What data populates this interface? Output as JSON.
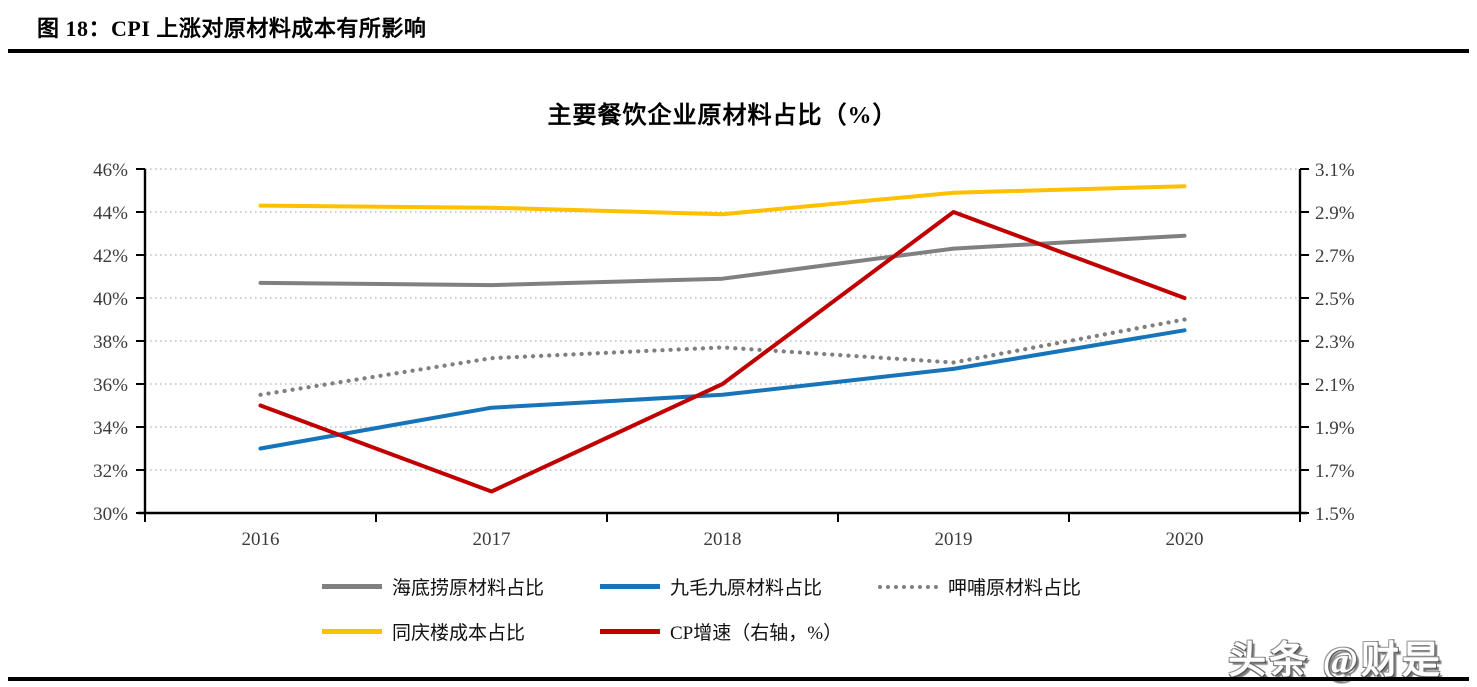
{
  "figure_header": {
    "title": "图 18：CPI 上涨对原材料成本有所影响"
  },
  "watermark": {
    "text": "头条 @财是"
  },
  "chart_data": {
    "type": "line",
    "title": "主要餐饮企业原材料占比（%）",
    "categories": [
      "2016",
      "2017",
      "2018",
      "2019",
      "2020"
    ],
    "series": [
      {
        "name": "海底捞原材料占比",
        "axis": "left",
        "color": "#808080",
        "line_style": "solid",
        "values": [
          40.7,
          40.6,
          40.9,
          42.3,
          42.9
        ]
      },
      {
        "name": "九毛九原材料占比",
        "axis": "left",
        "color": "#1874B8",
        "line_style": "solid",
        "values": [
          33.0,
          34.9,
          35.5,
          36.7,
          38.5
        ]
      },
      {
        "name": "呷哺原材料占比",
        "axis": "left",
        "color": "#7F7F7F",
        "line_style": "dotted",
        "values": [
          35.5,
          37.2,
          37.7,
          37.0,
          39.0
        ]
      },
      {
        "name": "同庆楼成本占比",
        "axis": "left",
        "color": "#FFC000",
        "line_style": "solid",
        "values": [
          44.3,
          44.2,
          43.9,
          44.9,
          45.2
        ]
      },
      {
        "name": "CP增速（右轴，%）",
        "axis": "right",
        "color": "#C00000",
        "line_style": "solid",
        "values": [
          2.0,
          1.6,
          2.1,
          2.9,
          2.5
        ]
      }
    ],
    "left_axis": {
      "min": 30,
      "max": 46,
      "step": 2,
      "tick_labels": [
        "30%",
        "32%",
        "34%",
        "36%",
        "38%",
        "40%",
        "42%",
        "44%",
        "46%"
      ]
    },
    "right_axis": {
      "min": 1.5,
      "max": 3.1,
      "step": 0.2,
      "tick_labels": [
        "1.5%",
        "1.7%",
        "1.9%",
        "2.1%",
        "2.3%",
        "2.5%",
        "2.7%",
        "2.9%",
        "3.1%"
      ]
    },
    "grid": "horizontal-dotted",
    "grid_color": "#BFBFBF",
    "axis_color": "#000000",
    "tick_label_color": "#3C3C3C",
    "legend_position": "bottom",
    "legend_rows": [
      [
        0,
        1,
        2
      ],
      [
        3,
        4
      ]
    ]
  }
}
